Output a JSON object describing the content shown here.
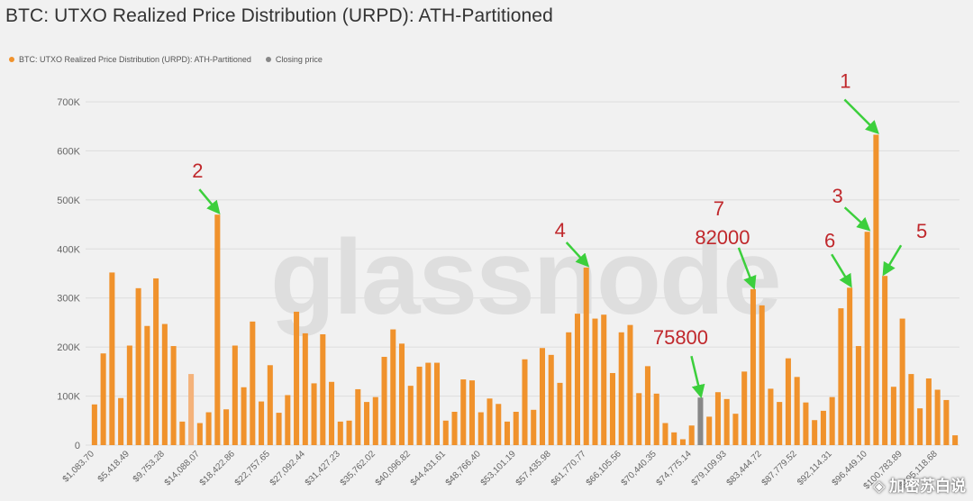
{
  "title": "BTC: UTXO Realized Price Distribution (URPD): ATH-Partitioned",
  "legend": {
    "series_label": "BTC: UTXO Realized Price Distribution (URPD): ATH-Partitioned",
    "closing_label": "Closing price"
  },
  "colors": {
    "bar": "#f0922c",
    "bar_light": "#f4b27a",
    "closing": "#888888",
    "annotation": "#c0282c",
    "arrow": "#3ccf3c",
    "grid": "#dddddd",
    "axis_text": "#666666"
  },
  "watermark": "glassnode",
  "corner_watermark": "◈ 加密苏白说",
  "chart_data": {
    "type": "bar",
    "title": "BTC: UTXO Realized Price Distribution (URPD): ATH-Partitioned",
    "ylim": [
      0,
      700000
    ],
    "yticks": [
      0,
      100000,
      200000,
      300000,
      400000,
      500000,
      600000,
      700000
    ],
    "ytick_labels": [
      "0",
      "100K",
      "200K",
      "300K",
      "400K",
      "500K",
      "600K",
      "700K"
    ],
    "xtick_labels": [
      {
        "index": 0,
        "label": "$1,083.70"
      },
      {
        "index": 4,
        "label": "$5,418.49"
      },
      {
        "index": 8,
        "label": "$9,753.28"
      },
      {
        "index": 12,
        "label": "$14,088.07"
      },
      {
        "index": 16,
        "label": "$18,422.86"
      },
      {
        "index": 20,
        "label": "$22,757.65"
      },
      {
        "index": 24,
        "label": "$27,092.44"
      },
      {
        "index": 28,
        "label": "$31,427.23"
      },
      {
        "index": 32,
        "label": "$35,762.02"
      },
      {
        "index": 36,
        "label": "$40,096.82"
      },
      {
        "index": 40,
        "label": "$44,431.61"
      },
      {
        "index": 44,
        "label": "$48,766.40"
      },
      {
        "index": 48,
        "label": "$53,101.19"
      },
      {
        "index": 52,
        "label": "$57,435.98"
      },
      {
        "index": 56,
        "label": "$61,770.77"
      },
      {
        "index": 60,
        "label": "$66,105.56"
      },
      {
        "index": 64,
        "label": "$70,440.35"
      },
      {
        "index": 68,
        "label": "$74,775.14"
      },
      {
        "index": 72,
        "label": "$79,109.93"
      },
      {
        "index": 76,
        "label": "$83,444.72"
      },
      {
        "index": 80,
        "label": "$87,779.52"
      },
      {
        "index": 84,
        "label": "$92,114.31"
      },
      {
        "index": 88,
        "label": "$96,449.10"
      },
      {
        "index": 92,
        "label": "$100,783.89"
      },
      {
        "index": 96,
        "label": "$105,118.68"
      }
    ],
    "values": [
      83000,
      187000,
      352000,
      96000,
      203000,
      320000,
      243000,
      340000,
      247000,
      202000,
      48000,
      145000,
      45000,
      67000,
      470000,
      73000,
      203000,
      118000,
      252000,
      89000,
      163000,
      66000,
      102000,
      272000,
      228000,
      126000,
      226000,
      129000,
      48000,
      50000,
      114000,
      88000,
      98000,
      180000,
      236000,
      207000,
      121000,
      160000,
      168000,
      168000,
      50000,
      68000,
      134000,
      132000,
      67000,
      95000,
      84000,
      48000,
      68000,
      175000,
      72000,
      198000,
      184000,
      127000,
      230000,
      268000,
      362000,
      258000,
      266000,
      147000,
      230000,
      245000,
      106000,
      161000,
      105000,
      45000,
      26000,
      12000,
      40000,
      97000,
      58000,
      108000,
      94000,
      64000,
      150000,
      318000,
      285000,
      115000,
      88000,
      177000,
      139000,
      87000,
      51000,
      70000,
      98000,
      279000,
      321000,
      202000,
      435000,
      633000,
      345000,
      119000,
      258000,
      145000,
      75000,
      136000,
      113000,
      92000,
      20000
    ],
    "highlight_light_index": 11,
    "closing_price_index": 69,
    "annotations": [
      {
        "label": "1",
        "index": 89
      },
      {
        "label": "2",
        "index": 14
      },
      {
        "label": "3",
        "index": 88
      },
      {
        "label": "4",
        "index": 56
      },
      {
        "label": "5",
        "index": 90
      },
      {
        "label": "6",
        "index": 86
      },
      {
        "label": "7",
        "index": 75
      },
      {
        "label": "82000",
        "index": 75
      },
      {
        "label": "75800",
        "index": 69
      }
    ]
  }
}
